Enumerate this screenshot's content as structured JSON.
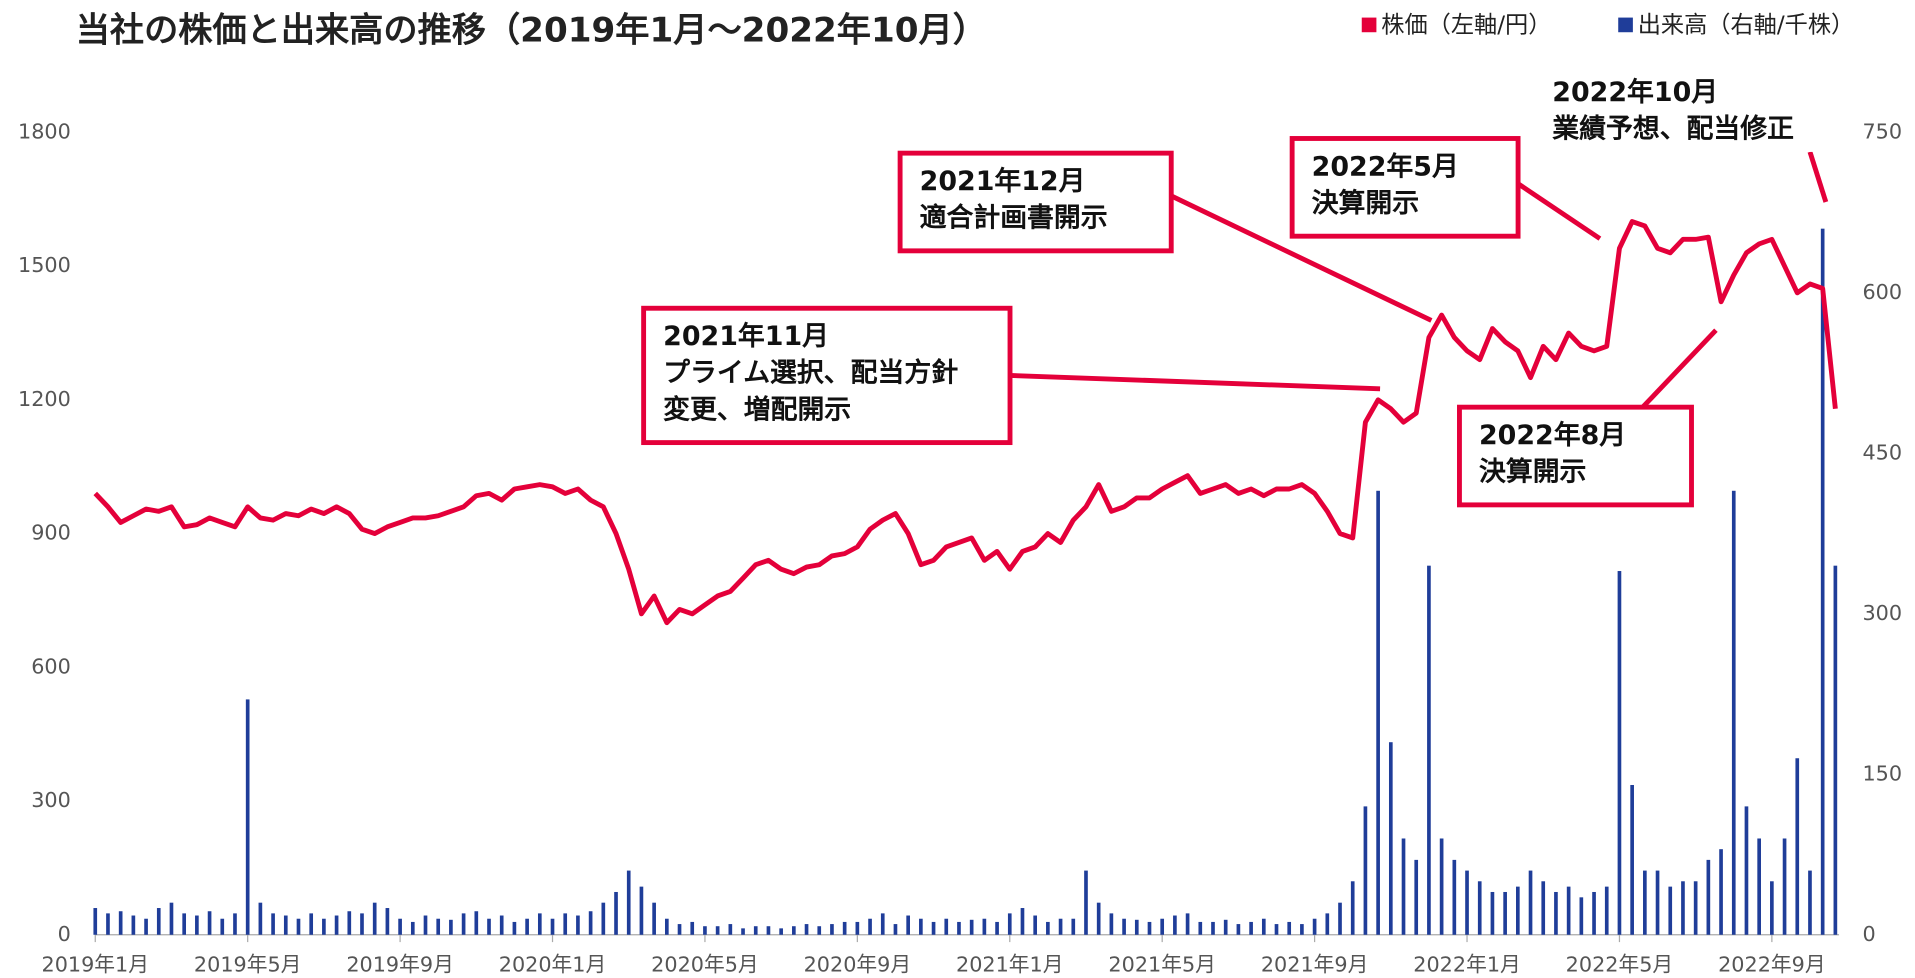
{
  "chart_data": {
    "type": "bar-line",
    "title": "当社の株価と出来高の推移（2019年1月～2022年10月）",
    "categories": [
      "2019年1月",
      null,
      null,
      null,
      null,
      null,
      null,
      null,
      null,
      null,
      null,
      null,
      "2019年5月",
      null,
      null,
      null,
      null,
      null,
      null,
      null,
      null,
      null,
      null,
      null,
      "2019年9月",
      null,
      null,
      null,
      null,
      null,
      null,
      null,
      null,
      null,
      null,
      null,
      "2020年1月",
      null,
      null,
      null,
      null,
      null,
      null,
      null,
      null,
      null,
      null,
      null,
      "2020年5月",
      null,
      null,
      null,
      null,
      null,
      null,
      null,
      null,
      null,
      null,
      null,
      "2020年9月",
      null,
      null,
      null,
      null,
      null,
      null,
      null,
      null,
      null,
      null,
      null,
      "2021年1月",
      null,
      null,
      null,
      null,
      null,
      null,
      null,
      null,
      null,
      null,
      null,
      "2021年5月",
      null,
      null,
      null,
      null,
      null,
      null,
      null,
      null,
      null,
      null,
      null,
      "2021年9月",
      null,
      null,
      null,
      null,
      null,
      null,
      null,
      null,
      null,
      null,
      null,
      "2022年1月",
      null,
      null,
      null,
      null,
      null,
      null,
      null,
      null,
      null,
      null,
      null,
      "2022年5月",
      null,
      null,
      null,
      null,
      null,
      null,
      null,
      null,
      null,
      null,
      null,
      "2022年9月",
      null,
      null,
      null,
      null,
      null
    ],
    "series": [
      {
        "name": "株価（左軸/円）",
        "color": "#e4003a",
        "kind": "line",
        "values": [
          990,
          960,
          925,
          940,
          955,
          950,
          960,
          915,
          920,
          935,
          925,
          915,
          960,
          935,
          930,
          945,
          940,
          955,
          945,
          960,
          945,
          910,
          900,
          915,
          925,
          935,
          935,
          940,
          950,
          960,
          985,
          990,
          975,
          1000,
          1005,
          1010,
          1005,
          990,
          1000,
          975,
          960,
          900,
          820,
          720,
          760,
          700,
          730,
          720,
          740,
          760,
          770,
          800,
          830,
          840,
          820,
          810,
          825,
          830,
          850,
          855,
          870,
          910,
          930,
          945,
          900,
          830,
          840,
          870,
          880,
          890,
          840,
          860,
          820,
          860,
          870,
          900,
          880,
          930,
          960,
          1010,
          950,
          960,
          980,
          980,
          1000,
          1015,
          1030,
          990,
          1000,
          1010,
          990,
          1000,
          985,
          1000,
          1000,
          1010,
          990,
          950,
          900,
          890,
          1150,
          1200,
          1180,
          1150,
          1170,
          1340,
          1390,
          1340,
          1310,
          1290,
          1360,
          1330,
          1310,
          1250,
          1320,
          1290,
          1350,
          1320,
          1310,
          1320,
          1540,
          1600,
          1590,
          1540,
          1530,
          1560,
          1560,
          1565,
          1420,
          1480,
          1530,
          1550,
          1560,
          1500,
          1440,
          1460,
          1450,
          1180
        ]
      },
      {
        "name": "出来高（右軸/千株）",
        "color": "#1f3d99",
        "kind": "bar",
        "axis": "y2",
        "values": [
          25,
          20,
          22,
          18,
          15,
          25,
          30,
          20,
          18,
          22,
          15,
          20,
          220,
          30,
          20,
          18,
          15,
          20,
          15,
          18,
          22,
          20,
          30,
          25,
          15,
          12,
          18,
          15,
          14,
          20,
          22,
          15,
          18,
          12,
          15,
          20,
          15,
          20,
          18,
          22,
          30,
          40,
          60,
          45,
          30,
          15,
          10,
          12,
          8,
          8,
          10,
          6,
          8,
          8,
          6,
          8,
          10,
          8,
          10,
          12,
          12,
          15,
          20,
          10,
          18,
          15,
          12,
          15,
          12,
          14,
          15,
          12,
          20,
          25,
          18,
          12,
          15,
          15,
          60,
          30,
          20,
          15,
          14,
          12,
          15,
          18,
          20,
          12,
          12,
          14,
          10,
          12,
          15,
          10,
          12,
          10,
          15,
          20,
          30,
          50,
          120,
          415,
          180,
          90,
          70,
          345,
          90,
          70,
          60,
          50,
          40,
          40,
          45,
          60,
          50,
          40,
          45,
          35,
          40,
          45,
          340,
          140,
          60,
          60,
          45,
          50,
          50,
          70,
          80,
          415,
          120,
          90,
          50,
          90,
          165,
          60,
          660,
          345
        ]
      }
    ],
    "ylim": [
      0,
      1800
    ],
    "yticks": [
      0,
      300,
      600,
      900,
      1200,
      1500,
      1800
    ],
    "y2lim": [
      0,
      750
    ],
    "y2ticks": [
      0,
      150,
      300,
      450,
      600,
      750
    ],
    "annotations": [
      {
        "lines": [
          "2021年11月",
          "プライム選択、配当方針",
          "変更、増配開示"
        ]
      },
      {
        "lines": [
          "2021年12月",
          "適合計画書開示"
        ]
      },
      {
        "lines": [
          "2022年5月",
          "決算開示"
        ]
      },
      {
        "lines": [
          "2022年10月",
          "業績予想、配当修正"
        ]
      },
      {
        "lines": [
          "2022年8月",
          "決算開示"
        ]
      }
    ]
  }
}
